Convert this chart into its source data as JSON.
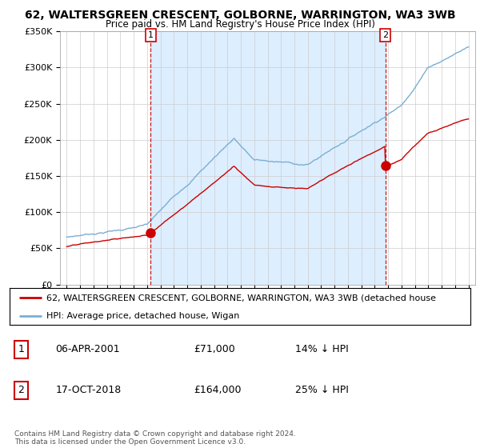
{
  "title1": "62, WALTERSGREEN CRESCENT, GOLBORNE, WARRINGTON, WA3 3WB",
  "title2": "Price paid vs. HM Land Registry's House Price Index (HPI)",
  "legend_line1": "62, WALTERSGREEN CRESCENT, GOLBORNE, WARRINGTON, WA3 3WB (detached house",
  "legend_line2": "HPI: Average price, detached house, Wigan",
  "table_row1": [
    "1",
    "06-APR-2001",
    "£71,000",
    "14% ↓ HPI"
  ],
  "table_row2": [
    "2",
    "17-OCT-2018",
    "£164,000",
    "25% ↓ HPI"
  ],
  "copyright": "Contains HM Land Registry data © Crown copyright and database right 2024.\nThis data is licensed under the Open Government Licence v3.0.",
  "ylim": [
    0,
    350000
  ],
  "yticks": [
    0,
    50000,
    100000,
    150000,
    200000,
    250000,
    300000,
    350000
  ],
  "hpi_color": "#7bafd4",
  "price_color": "#cc0000",
  "vline_color": "#cc0000",
  "shade_color": "#ddeeff",
  "marker1_year": 2001.27,
  "marker1_price": 71000,
  "marker2_year": 2018.79,
  "marker2_price": 164000,
  "background_color": "#ffffff",
  "grid_color": "#cccccc",
  "xstart": 1995,
  "xend": 2025
}
